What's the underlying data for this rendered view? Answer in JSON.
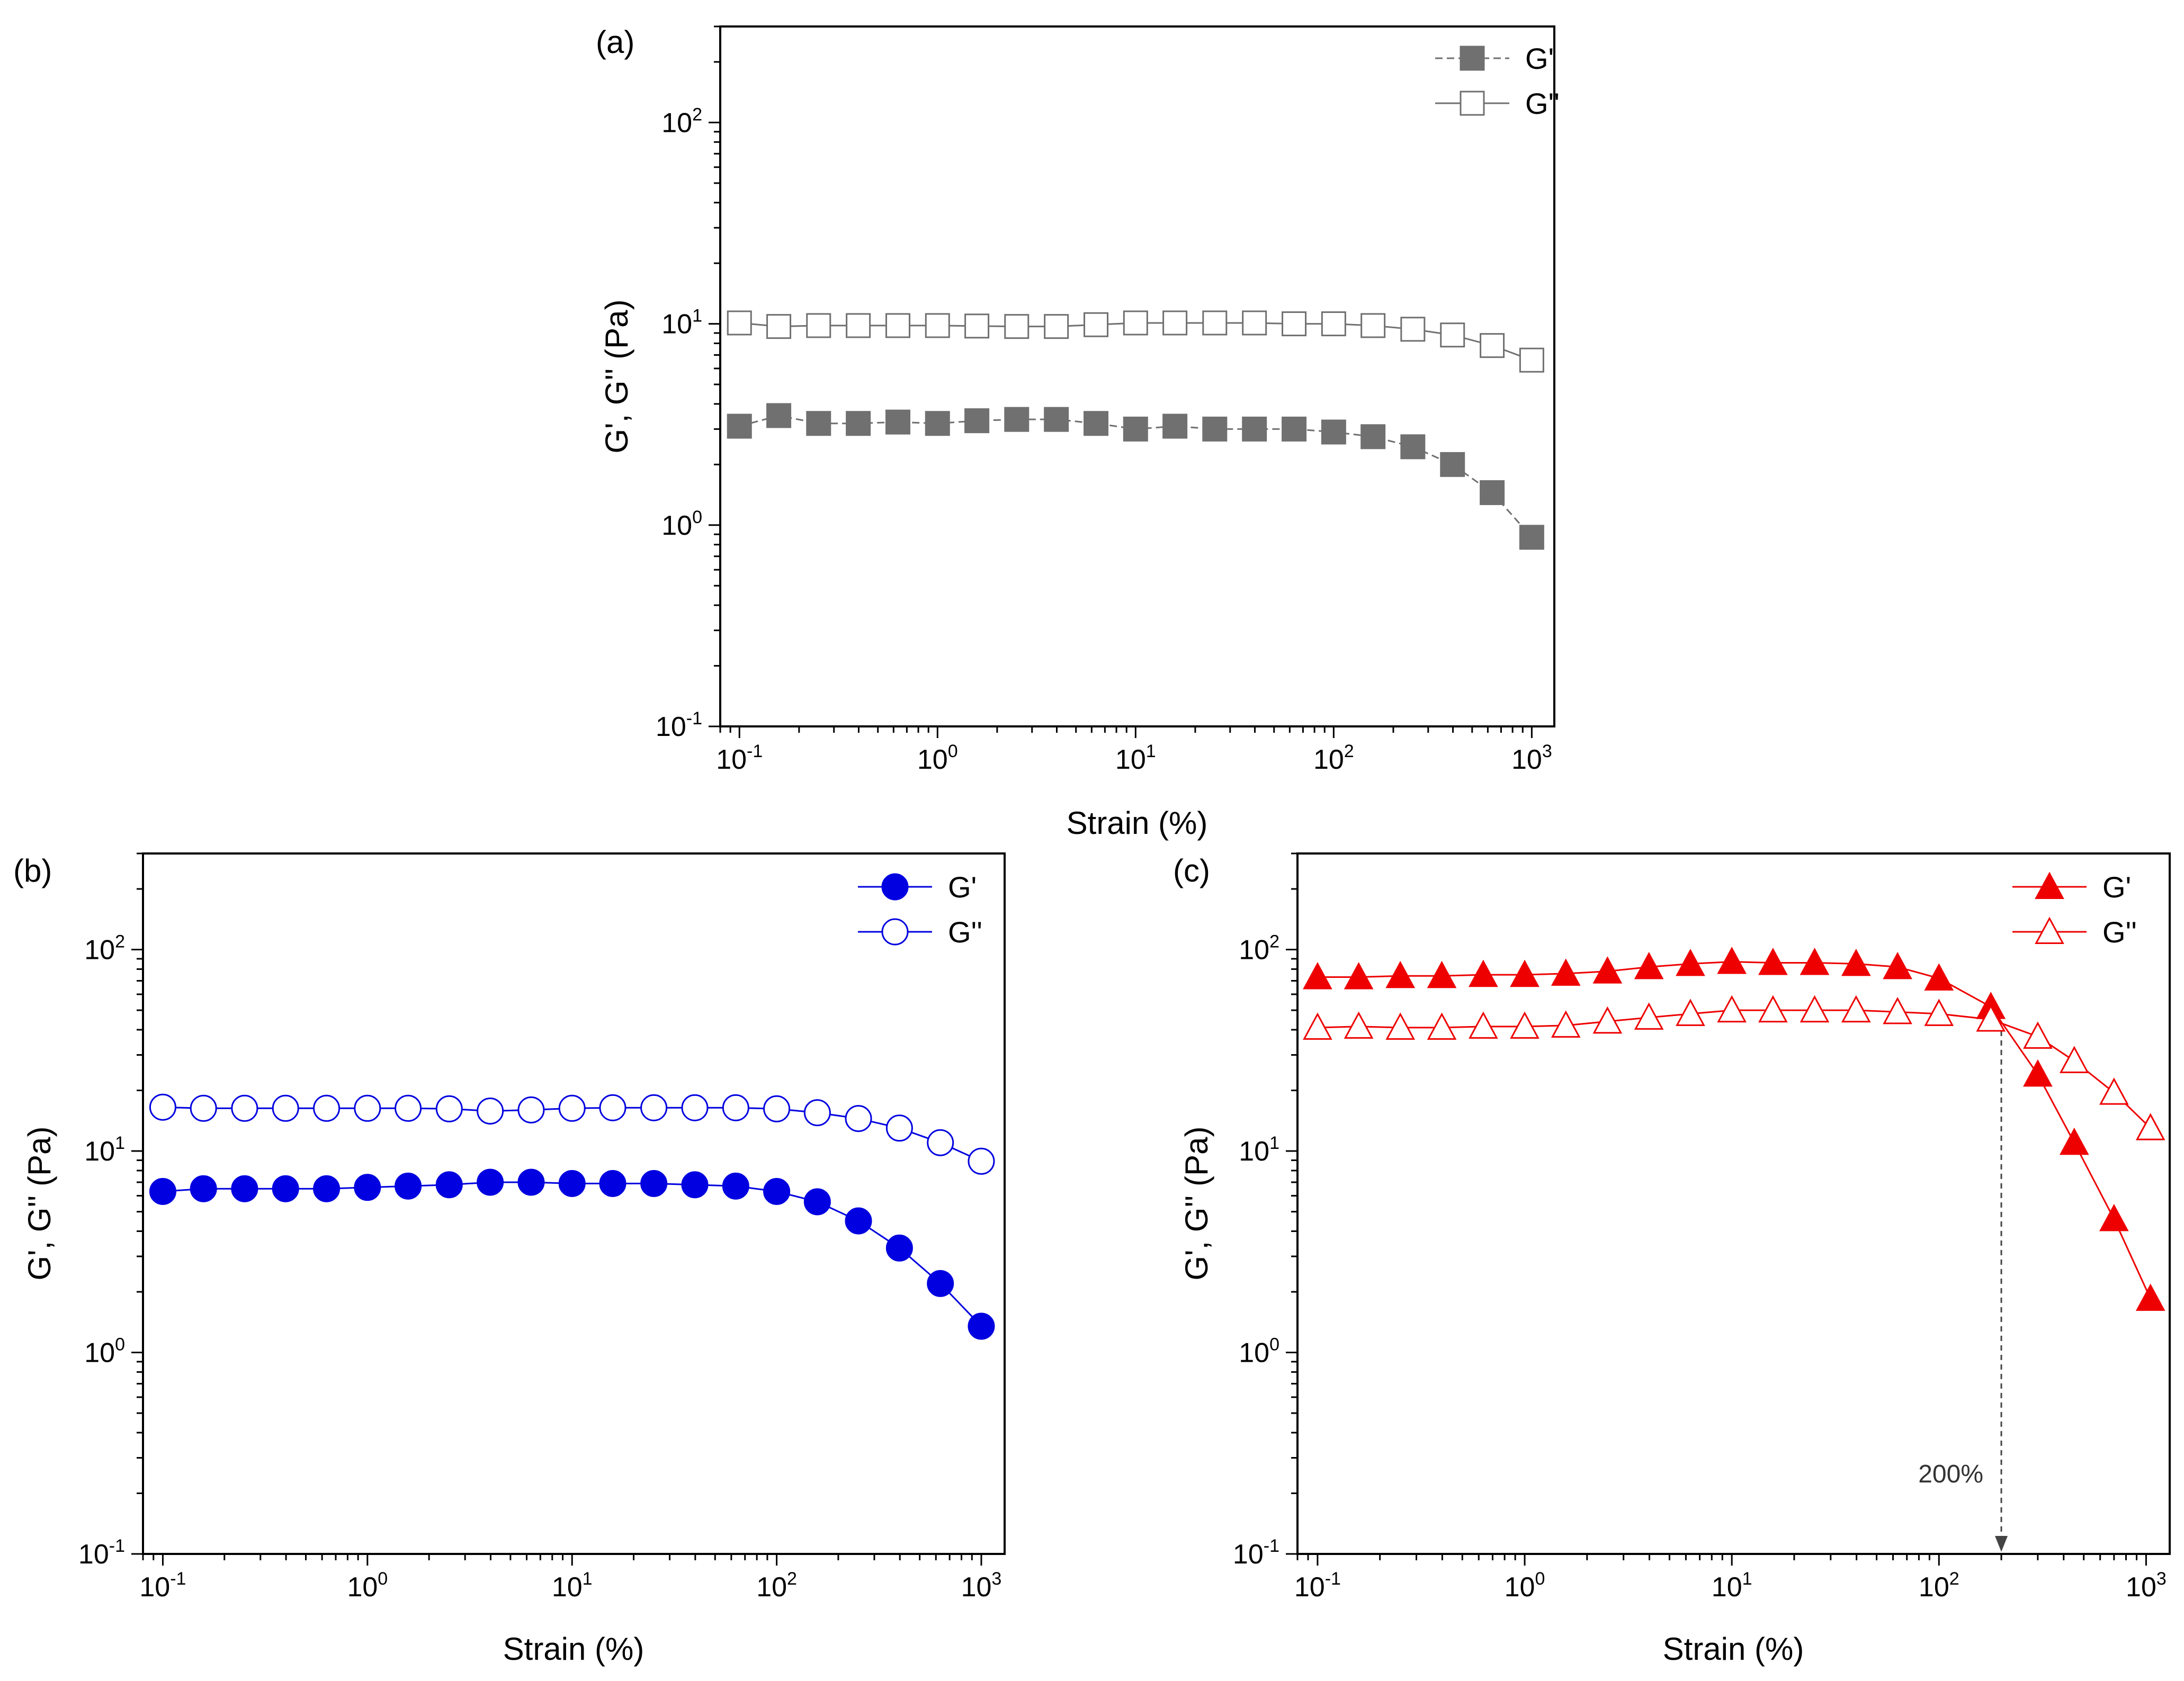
{
  "chart_data": [
    {
      "panel_label": "(a)",
      "type": "line",
      "xscale": "log",
      "yscale": "log",
      "xlabel": "Strain (%)",
      "ylabel": "G', G'' (Pa)",
      "xlim": [
        0.08,
        1300
      ],
      "ylim": [
        0.1,
        300
      ],
      "xticks": [
        {
          "base": "10",
          "exp": "-1"
        },
        {
          "base": "10",
          "exp": "0"
        },
        {
          "base": "10",
          "exp": "1"
        },
        {
          "base": "10",
          "exp": "2"
        },
        {
          "base": "10",
          "exp": "3"
        }
      ],
      "yticks": [
        {
          "base": "10",
          "exp": "-1"
        },
        {
          "base": "10",
          "exp": "0"
        },
        {
          "base": "10",
          "exp": "1"
        },
        {
          "base": "10",
          "exp": "2"
        }
      ],
      "legend_position": "top-right",
      "x": [
        0.1,
        0.158,
        0.251,
        0.398,
        0.631,
        1,
        1.58,
        2.51,
        3.98,
        6.31,
        10,
        15.8,
        25.1,
        39.8,
        63.1,
        100,
        158,
        251,
        398,
        631,
        1000
      ],
      "series": [
        {
          "name": "G'",
          "color": "#707070",
          "marker": "square",
          "filled": true,
          "dashed": true,
          "values": [
            3.1,
            3.5,
            3.2,
            3.2,
            3.25,
            3.2,
            3.3,
            3.35,
            3.35,
            3.2,
            3.0,
            3.1,
            3.0,
            3.0,
            3.0,
            2.9,
            2.75,
            2.45,
            2.0,
            1.45,
            0.87
          ]
        },
        {
          "name": "G''",
          "color": "#707070",
          "marker": "square",
          "filled": false,
          "dashed": false,
          "values": [
            10.1,
            9.7,
            9.8,
            9.8,
            9.8,
            9.8,
            9.75,
            9.7,
            9.7,
            9.9,
            10.1,
            10.1,
            10.1,
            10.1,
            10.0,
            10.0,
            9.8,
            9.4,
            8.8,
            7.8,
            6.6
          ]
        }
      ]
    },
    {
      "panel_label": "(b)",
      "type": "line",
      "xscale": "log",
      "yscale": "log",
      "xlabel": "Strain (%)",
      "ylabel": "G', G'' (Pa)",
      "xlim": [
        0.08,
        1300
      ],
      "ylim": [
        0.1,
        300
      ],
      "xticks": [
        {
          "base": "10",
          "exp": "-1"
        },
        {
          "base": "10",
          "exp": "0"
        },
        {
          "base": "10",
          "exp": "1"
        },
        {
          "base": "10",
          "exp": "2"
        },
        {
          "base": "10",
          "exp": "3"
        }
      ],
      "yticks": [
        {
          "base": "10",
          "exp": "-1"
        },
        {
          "base": "10",
          "exp": "0"
        },
        {
          "base": "10",
          "exp": "1"
        },
        {
          "base": "10",
          "exp": "2"
        }
      ],
      "legend_position": "top-right",
      "x": [
        0.1,
        0.158,
        0.251,
        0.398,
        0.631,
        1,
        1.58,
        2.51,
        3.98,
        6.31,
        10,
        15.8,
        25.1,
        39.8,
        63.1,
        100,
        158,
        251,
        398,
        631,
        1000
      ],
      "series": [
        {
          "name": "G'",
          "color": "#0000e0",
          "marker": "circle",
          "filled": true,
          "dashed": false,
          "values": [
            6.3,
            6.5,
            6.5,
            6.5,
            6.5,
            6.6,
            6.7,
            6.8,
            7.0,
            7.0,
            6.9,
            6.9,
            6.9,
            6.8,
            6.7,
            6.3,
            5.6,
            4.5,
            3.3,
            2.2,
            1.35
          ]
        },
        {
          "name": "G''",
          "color": "#0000e0",
          "marker": "circle",
          "filled": false,
          "dashed": false,
          "values": [
            16.5,
            16.3,
            16.3,
            16.3,
            16.3,
            16.3,
            16.3,
            16.2,
            15.8,
            16.0,
            16.3,
            16.4,
            16.4,
            16.4,
            16.4,
            16.2,
            15.5,
            14.5,
            13.0,
            11.0,
            8.9
          ]
        }
      ]
    },
    {
      "panel_label": "(c)",
      "type": "line",
      "xscale": "log",
      "yscale": "log",
      "xlabel": "Strain (%)",
      "ylabel": "G', G'' (Pa)",
      "xlim": [
        0.08,
        1300
      ],
      "ylim": [
        0.1,
        300
      ],
      "xticks": [
        {
          "base": "10",
          "exp": "-1"
        },
        {
          "base": "10",
          "exp": "0"
        },
        {
          "base": "10",
          "exp": "1"
        },
        {
          "base": "10",
          "exp": "2"
        },
        {
          "base": "10",
          "exp": "3"
        }
      ],
      "yticks": [
        {
          "base": "10",
          "exp": "-1"
        },
        {
          "base": "10",
          "exp": "0"
        },
        {
          "base": "10",
          "exp": "1"
        },
        {
          "base": "10",
          "exp": "2"
        }
      ],
      "legend_position": "top-right",
      "x": [
        0.1,
        0.158,
        0.251,
        0.398,
        0.631,
        1,
        1.58,
        2.51,
        3.98,
        6.31,
        10,
        15.8,
        25.1,
        39.8,
        63.1,
        100,
        178,
        300,
        450,
        700,
        1050
      ],
      "series": [
        {
          "name": "G'",
          "color": "#ee0000",
          "marker": "triangle",
          "filled": true,
          "dashed": false,
          "values": [
            73,
            73,
            74,
            74,
            75,
            75,
            76,
            78,
            82,
            85,
            87,
            86,
            86,
            85,
            82,
            72,
            52,
            24,
            11,
            4.6,
            1.85
          ]
        },
        {
          "name": "G''",
          "color": "#ee0000",
          "marker": "triangle",
          "filled": false,
          "dashed": false,
          "values": [
            41,
            41.5,
            41,
            41,
            41.5,
            41.5,
            42,
            44,
            46,
            48,
            50,
            50,
            50,
            50,
            49,
            48,
            45,
            37,
            28,
            19.5,
            13
          ]
        }
      ],
      "annotation": {
        "text": "200%",
        "x": 200,
        "arrow_from_y": 46,
        "arrow_to_y": 0.1
      }
    }
  ]
}
